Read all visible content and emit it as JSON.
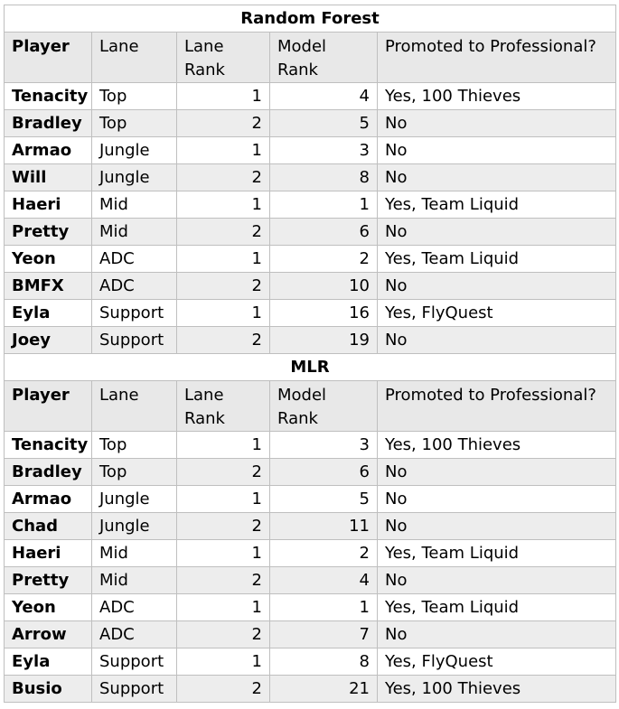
{
  "sections": [
    {
      "title": "Random Forest",
      "headers": [
        "Player",
        "Lane",
        "Lane Rank",
        "Model Rank",
        "Promoted to Professional?"
      ],
      "rows": [
        [
          "Tenacity",
          "Top",
          "1",
          "4",
          "Yes, 100 Thieves"
        ],
        [
          "Bradley",
          "Top",
          "2",
          "5",
          "No"
        ],
        [
          "Armao",
          "Jungle",
          "1",
          "3",
          "No"
        ],
        [
          "Will",
          "Jungle",
          "2",
          "8",
          "No"
        ],
        [
          "Haeri",
          "Mid",
          "1",
          "1",
          "Yes, Team Liquid"
        ],
        [
          "Pretty",
          "Mid",
          "2",
          "6",
          "No"
        ],
        [
          "Yeon",
          "ADC",
          "1",
          "2",
          "Yes, Team Liquid"
        ],
        [
          "BMFX",
          "ADC",
          "2",
          "10",
          "No"
        ],
        [
          "Eyla",
          "Support",
          "1",
          "16",
          "Yes, FlyQuest"
        ],
        [
          "Joey",
          "Support",
          "2",
          "19",
          "No"
        ]
      ]
    },
    {
      "title": "MLR",
      "headers": [
        "Player",
        "Lane",
        "Lane Rank",
        "Model Rank",
        "Promoted to Professional?"
      ],
      "rows": [
        [
          "Tenacity",
          "Top",
          "1",
          "3",
          "Yes, 100 Thieves"
        ],
        [
          "Bradley",
          "Top",
          "2",
          "6",
          "No"
        ],
        [
          "Armao",
          "Jungle",
          "1",
          "5",
          "No"
        ],
        [
          "Chad",
          "Jungle",
          "2",
          "11",
          "No"
        ],
        [
          "Haeri",
          "Mid",
          "1",
          "2",
          "Yes, Team Liquid"
        ],
        [
          "Pretty",
          "Mid",
          "2",
          "4",
          "No"
        ],
        [
          "Yeon",
          "ADC",
          "1",
          "1",
          "Yes, Team Liquid"
        ],
        [
          "Arrow",
          "ADC",
          "2",
          "7",
          "No"
        ],
        [
          "Eyla",
          "Support",
          "1",
          "8",
          "Yes, FlyQuest"
        ],
        [
          "Busio",
          "Support",
          "2",
          "21",
          "Yes, 100 Thieves"
        ]
      ]
    }
  ]
}
